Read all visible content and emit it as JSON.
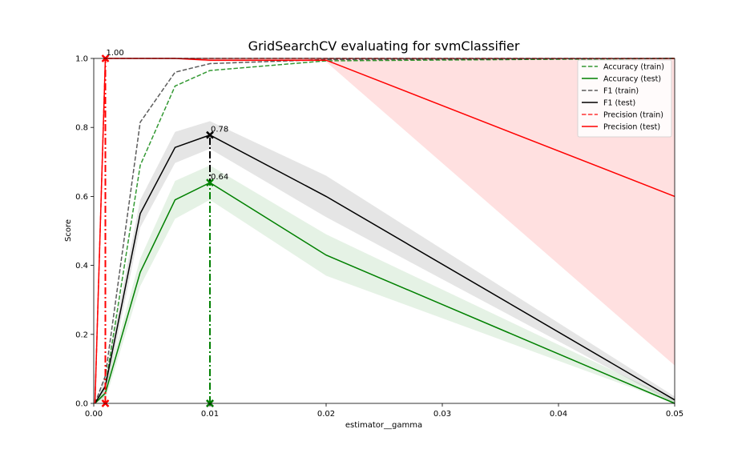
{
  "chart_data": {
    "type": "line",
    "title": "GridSearchCV evaluating for svmClassifier",
    "xlabel": "estimator__gamma",
    "ylabel": "Score",
    "xlim": [
      0.0,
      0.05
    ],
    "ylim": [
      0.0,
      1.0
    ],
    "xticks": [
      0.0,
      0.01,
      0.02,
      0.03,
      0.04,
      0.05
    ],
    "xtick_labels": [
      "0.00",
      "0.01",
      "0.02",
      "0.03",
      "0.04",
      "0.05"
    ],
    "yticks": [
      0.0,
      0.2,
      0.4,
      0.6,
      0.8,
      1.0
    ],
    "ytick_labels": [
      "0.0",
      "0.2",
      "0.4",
      "0.6",
      "0.8",
      "1.0"
    ],
    "grid": false,
    "legend_position": "top-right",
    "x": [
      0.0001,
      0.001,
      0.004,
      0.007,
      0.01,
      0.02,
      0.05
    ],
    "series": [
      {
        "name": "Accuracy (train)",
        "color": "#008000",
        "style": "dashed",
        "values": [
          0.0,
          0.05,
          0.69,
          0.92,
          0.965,
          0.993,
          1.0
        ]
      },
      {
        "name": "Accuracy (test)",
        "color": "#008000",
        "style": "solid",
        "values": [
          0.0,
          0.03,
          0.38,
          0.59,
          0.64,
          0.43,
          0.0
        ],
        "std": [
          0.0,
          0.02,
          0.04,
          0.055,
          0.05,
          0.06,
          0.01
        ]
      },
      {
        "name": "F1 (train)",
        "color": "#333333",
        "style": "dashed",
        "values": [
          0.0,
          0.08,
          0.815,
          0.96,
          0.985,
          0.997,
          1.0
        ]
      },
      {
        "name": "F1 (test)",
        "color": "#000000",
        "style": "solid",
        "values": [
          0.0,
          0.05,
          0.55,
          0.742,
          0.778,
          0.6,
          0.01
        ],
        "std": [
          0.0,
          0.03,
          0.04,
          0.045,
          0.04,
          0.06,
          0.01
        ]
      },
      {
        "name": "Precision (train)",
        "color": "#ff0000",
        "style": "dashed",
        "values": [
          0.0,
          1.0,
          1.0,
          1.0,
          1.0,
          1.0,
          1.0
        ]
      },
      {
        "name": "Precision (test)",
        "color": "#ff0000",
        "style": "solid",
        "values": [
          0.0,
          1.0,
          1.0,
          1.0,
          0.995,
          0.995,
          0.6
        ],
        "std": [
          0.0,
          0.0,
          0.0,
          0.0,
          0.005,
          0.005,
          0.49
        ]
      }
    ],
    "best_markers": [
      {
        "metric": "Precision (test)",
        "x": 0.001,
        "value": 1.0,
        "label": "1.00",
        "color": "#ff0000"
      },
      {
        "metric": "F1 (test)",
        "x": 0.01,
        "value": 0.778,
        "label": "0.78",
        "color": "#000000"
      },
      {
        "metric": "Accuracy (test)",
        "x": 0.01,
        "value": 0.64,
        "label": "0.64",
        "color": "#008000"
      }
    ]
  }
}
